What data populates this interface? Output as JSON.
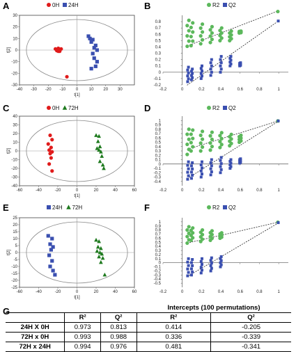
{
  "panels": {
    "A": "A",
    "B": "B",
    "C": "C",
    "D": "D",
    "E": "E",
    "F": "F",
    "G": "G"
  },
  "colors": {
    "red": "#e01b1b",
    "blue": "#3a4fb0",
    "darkgreen": "#1e7a1e",
    "lightgreen": "#5cb85c",
    "ellipse": "#888888"
  },
  "chart_data": [
    {
      "id": "A",
      "type": "scatter",
      "xlabel": "t[1]",
      "ylabel": "t[2]",
      "xlim": [
        -40,
        40
      ],
      "ylim": [
        -30,
        30
      ],
      "xticks": [
        -40,
        -30,
        -20,
        -10,
        0,
        10,
        20,
        30
      ],
      "yticks": [
        -30,
        -20,
        -10,
        0,
        10,
        20,
        30
      ],
      "legend": [
        {
          "name": "0H",
          "marker": "circle",
          "color": "#e01b1b"
        },
        {
          "name": "24H",
          "marker": "square",
          "color": "#3a4fb0"
        }
      ],
      "series": [
        {
          "name": "0H",
          "marker": "circle",
          "color": "#e01b1b",
          "points": [
            [
              -15,
              1
            ],
            [
              -14,
              0
            ],
            [
              -13,
              -1
            ],
            [
              -12,
              0
            ],
            [
              -13,
              1.5
            ],
            [
              -11,
              1
            ],
            [
              -14,
              -0.5
            ],
            [
              -12,
              -1
            ],
            [
              -13,
              0.5
            ],
            [
              -7,
              -23
            ]
          ]
        },
        {
          "name": "24H",
          "marker": "square",
          "color": "#3a4fb0",
          "points": [
            [
              8,
              12
            ],
            [
              9,
              10
            ],
            [
              11,
              9
            ],
            [
              10,
              7
            ],
            [
              13,
              4
            ],
            [
              12,
              2
            ],
            [
              14,
              0
            ],
            [
              11,
              -3
            ],
            [
              12,
              -7
            ],
            [
              14,
              -10
            ],
            [
              13,
              -14
            ],
            [
              10,
              -16
            ]
          ]
        }
      ]
    },
    {
      "id": "B",
      "type": "scatter",
      "xlim": [
        -0.2,
        1.1
      ],
      "ylim": [
        -0.2,
        0.9
      ],
      "xticks": [
        -0.2,
        0,
        0.2,
        0.4,
        0.6,
        0.8,
        1
      ],
      "yticks": [
        -0.2,
        -0.1,
        0,
        0.1,
        0.2,
        0.3,
        0.4,
        0.5,
        0.6,
        0.7,
        0.8
      ],
      "legend": [
        {
          "name": "R2",
          "marker": "circle",
          "color": "#5cb85c"
        },
        {
          "name": "Q2",
          "marker": "square",
          "color": "#3a4fb0"
        }
      ],
      "series": [
        {
          "name": "R2",
          "marker": "circle",
          "color": "#5cb85c",
          "x": [
            0.06,
            0.1,
            0.2,
            0.3,
            0.4,
            0.5,
            0.6,
            1.0
          ],
          "y_ranges": [
            [
              0.41,
              0.82
            ],
            [
              0.42,
              0.78
            ],
            [
              0.45,
              0.76
            ],
            [
              0.47,
              0.72
            ],
            [
              0.5,
              0.7
            ],
            [
              0.5,
              0.65
            ],
            [
              0.62,
              0.65
            ],
            [
              0.96,
              0.96
            ]
          ]
        },
        {
          "name": "Q2",
          "marker": "square",
          "color": "#3a4fb0",
          "x": [
            0.06,
            0.1,
            0.2,
            0.3,
            0.4,
            0.5,
            0.6,
            1.0
          ],
          "y_ranges": [
            [
              -0.15,
              0.08
            ],
            [
              -0.12,
              0.05
            ],
            [
              -0.1,
              0.1
            ],
            [
              -0.05,
              0.2
            ],
            [
              0.0,
              0.25
            ],
            [
              0.1,
              0.25
            ],
            [
              0.1,
              0.15
            ],
            [
              0.81,
              0.81
            ]
          ]
        }
      ],
      "regression_lines": [
        {
          "series": "R2",
          "from": [
            0.05,
            0.414
          ],
          "to": [
            1.0,
            0.973
          ]
        },
        {
          "series": "Q2",
          "from": [
            0.05,
            -0.205
          ],
          "to": [
            1.0,
            0.813
          ]
        }
      ]
    },
    {
      "id": "C",
      "type": "scatter",
      "xlabel": "t[1]",
      "ylabel": "t[2]",
      "xlim": [
        -60,
        60
      ],
      "ylim": [
        -40,
        40
      ],
      "xticks": [
        -60,
        -40,
        -20,
        0,
        20,
        40,
        60
      ],
      "yticks": [
        -40,
        -30,
        -20,
        -10,
        0,
        10,
        20,
        30,
        40
      ],
      "legend": [
        {
          "name": "0H",
          "marker": "circle",
          "color": "#e01b1b"
        },
        {
          "name": "72H",
          "marker": "triangle",
          "color": "#1e7a1e"
        }
      ],
      "series": [
        {
          "name": "0H",
          "marker": "circle",
          "color": "#e01b1b",
          "points": [
            [
              -28,
              18
            ],
            [
              -26,
              13
            ],
            [
              -30,
              8
            ],
            [
              -27,
              4
            ],
            [
              -29,
              1
            ],
            [
              -26,
              -1
            ],
            [
              -28,
              -3
            ],
            [
              -27,
              -8
            ],
            [
              -29,
              -15
            ],
            [
              -26,
              -23
            ]
          ]
        },
        {
          "name": "72H",
          "marker": "triangle",
          "color": "#1e7a1e",
          "points": [
            [
              20,
              18
            ],
            [
              23,
              17
            ],
            [
              22,
              11
            ],
            [
              24,
              5
            ],
            [
              21,
              3
            ],
            [
              23,
              1
            ],
            [
              25,
              -1
            ],
            [
              26,
              -6
            ],
            [
              24,
              -12
            ],
            [
              27,
              -16
            ],
            [
              28,
              -20
            ]
          ]
        }
      ]
    },
    {
      "id": "D",
      "type": "scatter",
      "xlim": [
        -0.2,
        1.1
      ],
      "ylim": [
        -0.5,
        1.1
      ],
      "xticks": [
        -0.2,
        0,
        0.2,
        0.4,
        0.6,
        0.8,
        1
      ],
      "yticks": [
        -0.4,
        -0.3,
        -0.2,
        -0.1,
        0,
        0.1,
        0.2,
        0.3,
        0.4,
        0.5,
        0.6,
        0.7,
        0.8,
        0.9,
        1
      ],
      "legend": [
        {
          "name": "R2",
          "marker": "circle",
          "color": "#5cb85c"
        },
        {
          "name": "Q2",
          "marker": "square",
          "color": "#3a4fb0"
        }
      ],
      "series": [
        {
          "name": "R2",
          "marker": "circle",
          "color": "#5cb85c",
          "x": [
            0.06,
            0.1,
            0.2,
            0.3,
            0.4,
            0.5,
            0.6,
            1.0
          ],
          "y_ranges": [
            [
              0.22,
              0.8
            ],
            [
              0.3,
              0.78
            ],
            [
              0.3,
              0.75
            ],
            [
              0.32,
              0.73
            ],
            [
              0.38,
              0.72
            ],
            [
              0.42,
              0.68
            ],
            [
              0.5,
              0.66
            ],
            [
              0.99,
              0.99
            ]
          ]
        },
        {
          "name": "Q2",
          "marker": "square",
          "color": "#3a4fb0",
          "x": [
            0.06,
            0.1,
            0.2,
            0.3,
            0.4,
            0.5,
            0.6,
            1.0
          ],
          "y_ranges": [
            [
              -0.35,
              0.05
            ],
            [
              -0.33,
              0.03
            ],
            [
              -0.3,
              0.05
            ],
            [
              -0.25,
              0.1
            ],
            [
              -0.2,
              0.15
            ],
            [
              -0.1,
              0.1
            ],
            [
              0.02,
              0.12
            ],
            [
              0.99,
              0.99
            ]
          ]
        }
      ],
      "regression_lines": [
        {
          "series": "R2",
          "from": [
            0.05,
            0.336
          ],
          "to": [
            1.0,
            0.993
          ]
        },
        {
          "series": "Q2",
          "from": [
            0.05,
            -0.339
          ],
          "to": [
            1.0,
            0.988
          ]
        }
      ]
    },
    {
      "id": "E",
      "type": "scatter",
      "xlabel": "t[1]",
      "ylabel": "t[2]",
      "xlim": [
        -60,
        60
      ],
      "ylim": [
        -25,
        25
      ],
      "xticks": [
        -60,
        -40,
        -20,
        0,
        20,
        40,
        60
      ],
      "yticks": [
        -25,
        -20,
        -15,
        -10,
        -5,
        0,
        5,
        10,
        15,
        20,
        25
      ],
      "legend": [
        {
          "name": "24H",
          "marker": "square",
          "color": "#3a4fb0"
        },
        {
          "name": "72H",
          "marker": "triangle",
          "color": "#1e7a1e"
        }
      ],
      "series": [
        {
          "name": "24H",
          "marker": "square",
          "color": "#3a4fb0",
          "points": [
            [
              -30,
              12
            ],
            [
              -26,
              10
            ],
            [
              -28,
              6
            ],
            [
              -25,
              4
            ],
            [
              -27,
              2
            ],
            [
              -29,
              -2
            ],
            [
              -26,
              -6
            ],
            [
              -28,
              -10
            ],
            [
              -25,
              -13
            ],
            [
              -23,
              -16
            ]
          ]
        },
        {
          "name": "72H",
          "marker": "triangle",
          "color": "#1e7a1e",
          "points": [
            [
              20,
              9
            ],
            [
              23,
              8
            ],
            [
              22,
              4
            ],
            [
              25,
              3
            ],
            [
              21,
              1
            ],
            [
              24,
              0
            ],
            [
              26,
              -1
            ],
            [
              23,
              -3
            ],
            [
              27,
              -4
            ],
            [
              25,
              -7
            ],
            [
              29,
              -16
            ]
          ]
        }
      ]
    },
    {
      "id": "F",
      "type": "scatter",
      "xlim": [
        -0.2,
        1.1
      ],
      "ylim": [
        -0.6,
        1.1
      ],
      "xticks": [
        -0.2,
        0,
        0.2,
        0.4,
        0.6,
        0.8,
        1
      ],
      "yticks": [
        -0.5,
        -0.4,
        -0.3,
        -0.2,
        -0.1,
        0,
        0.1,
        0.2,
        0.3,
        0.4,
        0.5,
        0.6,
        0.7,
        0.8,
        0.9,
        1
      ],
      "legend": [
        {
          "name": "R2",
          "marker": "circle",
          "color": "#5cb85c"
        },
        {
          "name": "Q2",
          "marker": "square",
          "color": "#3a4fb0"
        }
      ],
      "series": [
        {
          "name": "R2",
          "marker": "circle",
          "color": "#5cb85c",
          "x": [
            0.06,
            0.1,
            0.2,
            0.3,
            0.4,
            1.0
          ],
          "y_ranges": [
            [
              0.48,
              0.88
            ],
            [
              0.55,
              0.85
            ],
            [
              0.52,
              0.8
            ],
            [
              0.55,
              0.78
            ],
            [
              0.6,
              0.73
            ],
            [
              0.99,
              0.99
            ]
          ]
        },
        {
          "name": "Q2",
          "marker": "square",
          "color": "#3a4fb0",
          "x": [
            0.06,
            0.1,
            0.2,
            0.3,
            0.4,
            1.0
          ],
          "y_ranges": [
            [
              -0.32,
              0.1
            ],
            [
              -0.3,
              0.08
            ],
            [
              -0.25,
              0.1
            ],
            [
              -0.2,
              0.12
            ],
            [
              -0.1,
              0.15
            ],
            [
              0.98,
              0.98
            ]
          ]
        }
      ],
      "regression_lines": [
        {
          "series": "R2",
          "from": [
            0.05,
            0.481
          ],
          "to": [
            1.0,
            0.994
          ]
        },
        {
          "series": "Q2",
          "from": [
            0.05,
            -0.341
          ],
          "to": [
            1.0,
            0.976
          ]
        }
      ]
    },
    {
      "id": "G",
      "type": "table",
      "title": "Intercepts (100 permutations)",
      "columns": [
        "",
        "R²",
        "Q²",
        "R²",
        "Q²"
      ],
      "rows": [
        [
          "24H X 0H",
          "0.973",
          "0.813",
          "0.414",
          "-0.205"
        ],
        [
          "72H x 0H",
          "0.993",
          "0.988",
          "0.336",
          "-0.339"
        ],
        [
          "72H x 24H",
          "0.994",
          "0.976",
          "0.481",
          "-0.341"
        ]
      ]
    }
  ]
}
